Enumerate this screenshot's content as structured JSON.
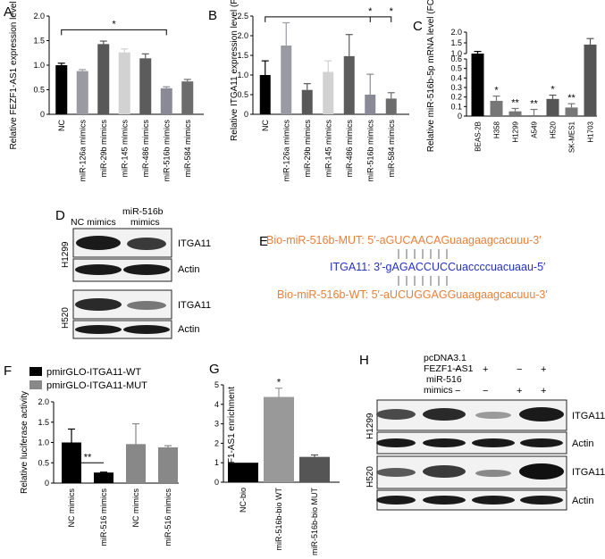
{
  "panels": {
    "A": {
      "letter": "A"
    },
    "B": {
      "letter": "B"
    },
    "C": {
      "letter": "C"
    },
    "D": {
      "letter": "D",
      "col1": "NC mimics",
      "col2_line1": "miR-516b",
      "col2_line2": "mimics",
      "cell1": "H1299",
      "cell2": "H520",
      "band_itga": "ITGA11",
      "band_actin": "Actin"
    },
    "E": {
      "letter": "E",
      "mut_prefix": "Bio-miR-516b-MUT: 5′-a",
      "mut_upper": "GUCAACAG",
      "mut_suffix": "uaagaagcacuuu-3′",
      "itga_prefix": "ITGA11: 3′-gA",
      "itga_upper": "GACCUCC",
      "itga_suffix": "uaccccuacuaau-5′",
      "wt_prefix": "Bio-miR-516b-WT: 5′-a",
      "wt_upper": "UCUGGAGG",
      "wt_suffix": "uaagaagcacuuu-3′",
      "mut_color": "#e8803a",
      "itga_color": "#2431c8"
    },
    "F": {
      "letter": "F"
    },
    "G": {
      "letter": "G"
    },
    "H": {
      "letter": "H",
      "row1": "pcDNA3.1",
      "row2": "FEZF1-AS1",
      "row3": "miR-516",
      "row4": "mimics",
      "signs_r1": [
        "−",
        "+",
        "−",
        "+"
      ],
      "signs_r2": [
        "−",
        "−",
        "+",
        "+"
      ],
      "cell1": "H1299",
      "cell2": "H520",
      "band_itga": "ITGA11",
      "band_actin": "Actin"
    }
  },
  "chart_data": [
    {
      "id": "A",
      "type": "bar",
      "ylabel": "Relative FEZF1-AS1 expression level (FC)",
      "ylim": [
        0,
        2.0
      ],
      "yticks": [
        0,
        0.5,
        1.0,
        1.5,
        2.0
      ],
      "ytick_labels": [
        "0",
        "0.5",
        "1.0",
        "1.5",
        "2.0"
      ],
      "categories": [
        "NC",
        "miR-126a mimics",
        "miR-29b mimics",
        "miR-145 mimics",
        "miR-486 mimics",
        "miR-516b mimics",
        "miR-584 mimics"
      ],
      "values": [
        1.0,
        0.88,
        1.43,
        1.26,
        1.14,
        0.53,
        0.67
      ],
      "errors": [
        0.04,
        0.03,
        0.06,
        0.07,
        0.09,
        0.03,
        0.04
      ],
      "colors": [
        "#000000",
        "#9a9aa2",
        "#585858",
        "#d2d2d2",
        "#5c5c5c",
        "#8a8a96",
        "#6c6c6c"
      ],
      "significance": "*"
    },
    {
      "id": "B",
      "type": "bar",
      "ylabel": "Relative ITGA11 expression level (FC)",
      "ylim": [
        0,
        2.5
      ],
      "yticks": [
        0,
        0.5,
        1.0,
        1.5,
        2.0,
        2.5
      ],
      "ytick_labels": [
        "0",
        "0.5",
        "1.0",
        "1.5",
        "2.0",
        "2.5"
      ],
      "categories": [
        "NC",
        "miR-126a mimics",
        "miR-29b mimics",
        "miR-145 mimics",
        "miR-486 mimics",
        "miR-516b mimics",
        "miR-584 mimics"
      ],
      "values": [
        1.0,
        1.75,
        0.62,
        1.08,
        1.48,
        0.5,
        0.4
      ],
      "errors": [
        0.36,
        0.58,
        0.16,
        0.28,
        0.55,
        0.52,
        0.15
      ],
      "colors": [
        "#000000",
        "#9a9aa2",
        "#585858",
        "#d2d2d2",
        "#5c5c5c",
        "#8a8a96",
        "#6c6c6c"
      ],
      "significance": [
        "*",
        "*"
      ]
    },
    {
      "id": "C",
      "type": "bar",
      "ylabel": "Relative miR-516b-5p mRNA level (FC)",
      "ylim": [
        0,
        2.0
      ],
      "axis_break": [
        0.6,
        1.0
      ],
      "yticks": [
        0,
        0.1,
        0.2,
        0.3,
        0.4,
        0.5,
        0.6,
        1.0,
        1.5,
        2.0
      ],
      "ytick_labels": [
        "0",
        "0.1",
        "0.2",
        "0.3",
        "0.4",
        "0.5",
        "0.6",
        "1.0",
        "1.5",
        "2.0"
      ],
      "categories": [
        "BEAS-2B",
        "H358",
        "H1299",
        "A549",
        "H520",
        "SK-MES1",
        "H1703"
      ],
      "values": [
        1.0,
        0.16,
        0.05,
        0.01,
        0.18,
        0.09,
        1.42
      ],
      "errors": [
        0.1,
        0.05,
        0.03,
        0.06,
        0.04,
        0.04,
        0.28
      ],
      "colors": [
        "#000000",
        "#777777",
        "#777777",
        "#777777",
        "#555555",
        "#777777",
        "#555555"
      ],
      "stars": [
        "",
        "*",
        "**",
        "**",
        "*",
        "**",
        ""
      ]
    },
    {
      "id": "F",
      "type": "bar",
      "ylabel": "Relative luciferase activity",
      "ylim": [
        0,
        2.0
      ],
      "yticks": [
        0,
        0.5,
        1.0,
        1.5,
        2.0
      ],
      "ytick_labels": [
        "0",
        "0.5",
        "1.0",
        "1.5",
        "2.0"
      ],
      "categories": [
        "NC mimics",
        "miR-516 mimics",
        "NC mimics",
        "miR-516 mimics"
      ],
      "values": [
        1.0,
        0.26,
        0.96,
        0.88
      ],
      "errors": [
        0.33,
        0.01,
        0.5,
        0.04
      ],
      "colors": [
        "#000000",
        "#000000",
        "#888888",
        "#888888"
      ],
      "series": [
        {
          "name": "pmirGLO-ITGA11-WT",
          "color": "#000000"
        },
        {
          "name": "pmirGLO-ITGA11-MUT",
          "color": "#888888"
        }
      ],
      "legend": "top-left",
      "significance": "**"
    },
    {
      "id": "G",
      "type": "bar",
      "ylabel": "FEZF1-AS1 enrichment",
      "ylim": [
        0,
        5
      ],
      "yticks": [
        0,
        1,
        2,
        3,
        4,
        5
      ],
      "ytick_labels": [
        "0",
        "1",
        "2",
        "3",
        "4",
        "5"
      ],
      "categories": [
        "NC-bio",
        "miR-516b-bio WT",
        "miR-516b-bio MUT"
      ],
      "values": [
        1.0,
        4.38,
        1.3
      ],
      "errors": [
        0.0,
        0.45,
        0.1
      ],
      "colors": [
        "#000000",
        "#999999",
        "#555555"
      ],
      "stars": [
        "",
        "*",
        ""
      ]
    }
  ]
}
